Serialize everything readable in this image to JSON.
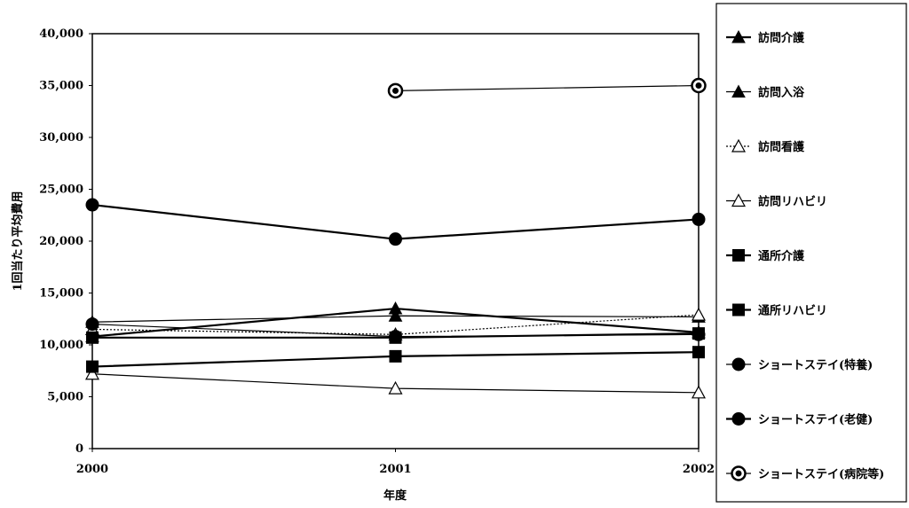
{
  "chart_data": {
    "type": "line",
    "title": "",
    "xlabel": "年度",
    "ylabel": "1回当たり平均費用",
    "categories": [
      "2000",
      "2001",
      "2002"
    ],
    "ylim": [
      0,
      40000
    ],
    "yticks": [
      0,
      5000,
      10000,
      15000,
      20000,
      25000,
      30000,
      35000,
      40000
    ],
    "ytick_labels": [
      "0",
      "5,000",
      "10,000",
      "15,000",
      "20,000",
      "25,000",
      "30,000",
      "35,000",
      "40,000"
    ],
    "grid": false,
    "legend_position": "right",
    "series": [
      {
        "name": "訪問介護",
        "values": [
          10800,
          13500,
          11200
        ],
        "marker": "triangle-filled",
        "line": "solid-thick",
        "color": "#000000"
      },
      {
        "name": "訪問入浴",
        "values": [
          12200,
          12800,
          12700
        ],
        "marker": "triangle-filled",
        "line": "solid",
        "color": "#000000"
      },
      {
        "name": "訪問看護",
        "values": [
          11500,
          11000,
          12900
        ],
        "marker": "triangle-hollow",
        "line": "dotted",
        "color": "#000000"
      },
      {
        "name": "訪問リハビリ",
        "values": [
          7200,
          5800,
          5400
        ],
        "marker": "triangle-hollow",
        "line": "solid",
        "color": "#000000"
      },
      {
        "name": "通所介護",
        "values": [
          10700,
          10700,
          11100
        ],
        "marker": "square-filled",
        "line": "solid-thick",
        "color": "#000000"
      },
      {
        "name": "通所リハビリ",
        "values": [
          7900,
          8900,
          9300
        ],
        "marker": "square-filled",
        "line": "solid-thick",
        "color": "#000000"
      },
      {
        "name": "ショートステイ(特養)",
        "values": [
          12000,
          10800,
          11000
        ],
        "marker": "circle-filled",
        "line": "solid",
        "color": "#000000"
      },
      {
        "name": "ショートステイ(老健)",
        "values": [
          23500,
          20200,
          22100
        ],
        "marker": "circle-filled",
        "line": "solid-thick",
        "color": "#000000"
      },
      {
        "name": "ショートステイ(病院等)",
        "values": [
          null,
          34500,
          35000
        ],
        "marker": "circle-dotted",
        "line": "solid",
        "color": "#000000"
      }
    ]
  }
}
